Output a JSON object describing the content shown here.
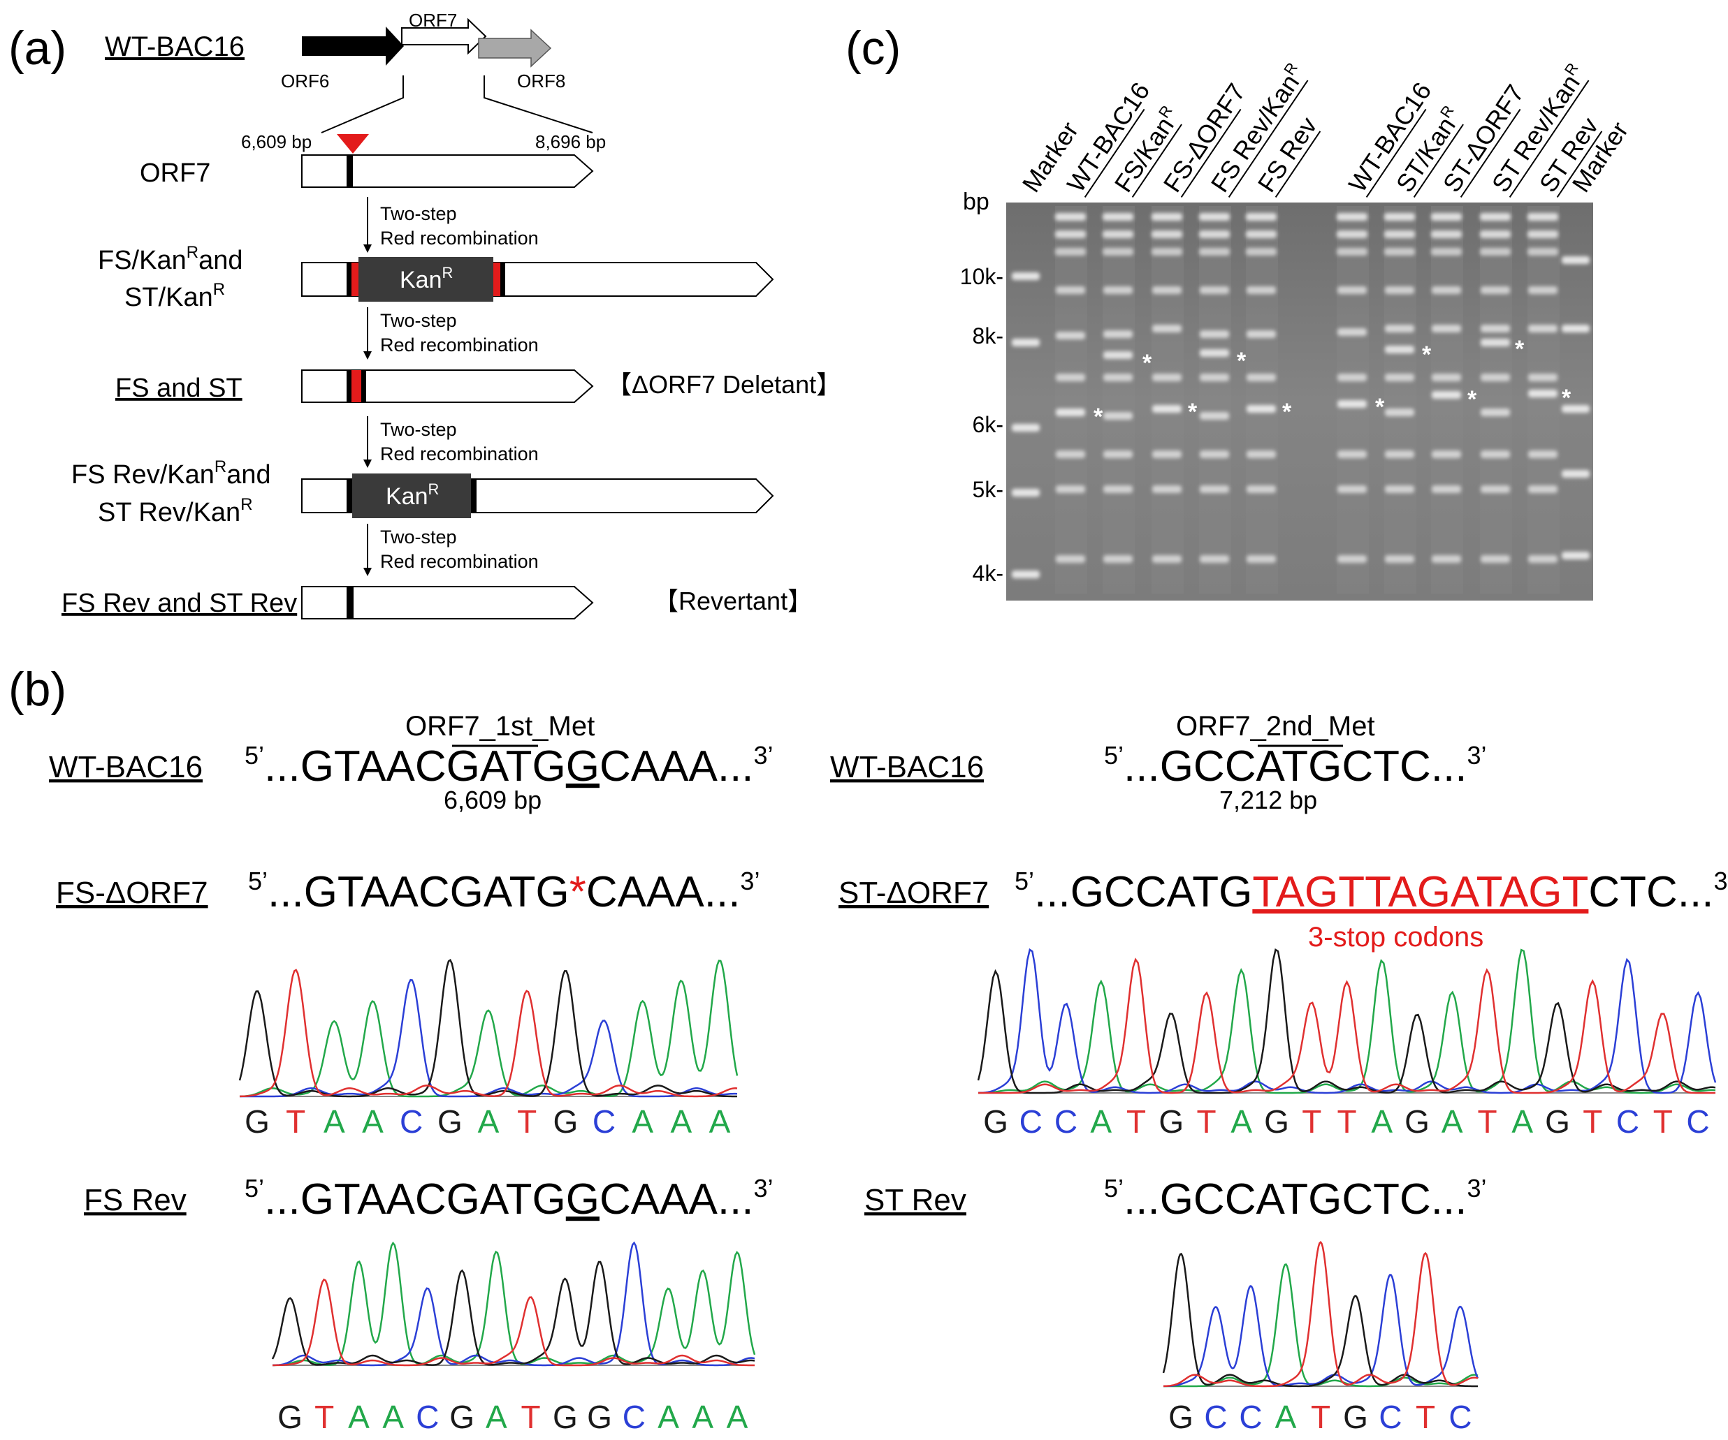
{
  "panel_labels": {
    "a": "(a)",
    "b": "(b)",
    "c": "(c)"
  },
  "panel_a": {
    "wt_label": "WT-BAC16",
    "genes": {
      "orf6": "ORF6",
      "orf7": "ORF7",
      "orf8": "ORF8"
    },
    "coord_start": "6,609 bp",
    "coord_end": "8,696 bp",
    "rows": {
      "orf7": "ORF7",
      "kan_line1": "FS/Kan",
      "kan_line1_tail": "and",
      "kan_line2": "ST/Kan",
      "sup_r": "R",
      "deletant": "FS and ST",
      "rev_kan_line1": "FS Rev/Kan",
      "rev_kan_line1_tail": "and",
      "rev_kan_line2": "ST Rev/Kan",
      "revertant": "FS Rev and ST Rev"
    },
    "kan_box": "Kan",
    "step_line1": "Two-step",
    "step_line2": "Red recombination",
    "deletant_tag": "【ΔORF7 Deletant】",
    "revertant_tag": "【Revertant】"
  },
  "panel_b": {
    "wt_label_left": "WT-BAC16",
    "wt_label_right": "WT-BAC16",
    "met1": "ORF7_1st_Met",
    "met2": "ORF7_2nd_Met",
    "five": "5’",
    "three": "3’",
    "wt_seq1_pre": "...GTAACG",
    "wt_seq1_atg": "ATG",
    "wt_seq1_g": "G",
    "wt_seq1_post": "CAAA...",
    "wt_pos1": "6,609 bp",
    "wt_seq2_pre": "...GCC",
    "wt_seq2_atg": "ATG",
    "wt_seq2_post": "CTC...",
    "wt_pos2": "7,212 bp",
    "fs_label": "FS-ΔORF7",
    "fs_seq_pre": "...GTAACGATG",
    "fs_star": "*",
    "fs_seq_post": "CAAA...",
    "st_label": "ST-ΔORF7",
    "st_seq_pre": "...GCCATG",
    "st_seq_red": "TAGTTAGATAGT",
    "st_seq_post": "CTC...",
    "stop_note": "3-stop codons",
    "fsrev_label": "FS Rev",
    "fsrev_seq_pre": "...GTAACGATG",
    "fsrev_seq_g": "G",
    "fsrev_seq_post": "CAAA...",
    "strev_label": "ST Rev",
    "strev_seq": "...GCCATGCTC...",
    "trace_fs": "GTAACGATGCAAA",
    "trace_st": "GCCATGTAGTTAGATAGTCTC",
    "trace_fsrev": "GTAACGATGGCAAA",
    "trace_strev": "GCCATGCTC",
    "base_colors": {
      "A": "#22a84a",
      "C": "#2b3fd6",
      "G": "#1a1a1a",
      "T": "#e03030"
    }
  },
  "panel_c": {
    "bp_label": "bp",
    "ladder": [
      "10k-",
      "8k-",
      "6k-",
      "5k-",
      "4k-"
    ],
    "lanes": [
      "Marker",
      "WT-BAC16",
      "FS/Kan",
      "FS-ΔORF7",
      "FS Rev/Kan",
      "FS Rev",
      "WT-BAC16",
      "ST/Kan",
      "ST-ΔORF7",
      "ST Rev/Kan",
      "ST Rev",
      "Marker"
    ],
    "lane_sup": [
      "",
      "",
      "R",
      "",
      "R",
      "",
      "",
      "R",
      "",
      "R",
      "",
      ""
    ],
    "star": "*"
  },
  "colors": {
    "red": "#e31b1b",
    "kan_box": "#3a3a3a",
    "gray_arrow": "#a8a8a8",
    "gel_bg": "#7b7b7b",
    "band": "#e8e8e8"
  }
}
